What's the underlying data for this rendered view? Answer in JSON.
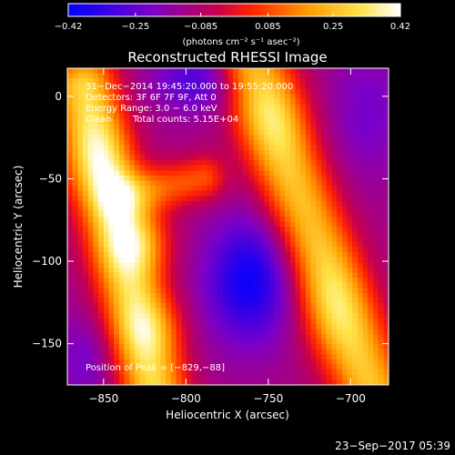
{
  "chart_data": {
    "type": "heatmap",
    "title": "Reconstructed RHESSI Image",
    "xlabel": "Heliocentric X (arcsec)",
    "ylabel": "Heliocentric Y (arcsec)",
    "xlim": [
      -872,
      -677
    ],
    "ylim": [
      -175,
      17
    ],
    "x_ticks": [
      -850,
      -800,
      -750,
      -700
    ],
    "x_tick_labels": [
      "−850",
      "−800",
      "−750",
      "−700"
    ],
    "y_ticks": [
      0,
      -50,
      -100,
      -150
    ],
    "y_tick_labels": [
      "0",
      "−50",
      "−100",
      "−150"
    ],
    "colorbar": {
      "range": [
        -0.42,
        0.42
      ],
      "ticks": [
        -0.42,
        -0.25,
        -0.085,
        0.085,
        0.25,
        0.42
      ],
      "tick_labels": [
        "−0.42",
        "−0.25",
        "−0.085",
        "0.085",
        "0.25",
        "0.42"
      ],
      "unit_label": "(photons cm⁻² s⁻¹ asec⁻²)",
      "colors": [
        "#0000ff",
        "#7a00c8",
        "#c8004a",
        "#ff2200",
        "#ff9a00",
        "#ffe44a",
        "#ffffff"
      ]
    },
    "annotations": {
      "time_range": "31−Dec−2014 19:45:20.000 to 19:55:20.000",
      "detectors": "Detectors: 3F 6F 7F 9F, Att 0",
      "energy": "Energy Range: 3.0 − 6.0 keV",
      "method": "Clean",
      "total_counts": "Total counts: 5.15E+04",
      "peak": "Position of Peak = [−829,−88]"
    },
    "peak_position": [
      -829,
      -88
    ],
    "image_description_components": [
      {
        "kind": "ridge",
        "from": [
          -860,
          10
        ],
        "to": [
          -800,
          -175
        ],
        "value": 0.3
      },
      {
        "kind": "ridge",
        "from": [
          -760,
          10
        ],
        "to": [
          -690,
          -175
        ],
        "value": 0.28
      },
      {
        "kind": "trough",
        "center": [
          -765,
          -110
        ],
        "value": -0.35
      },
      {
        "kind": "trough",
        "center": [
          -770,
          10
        ],
        "value": -0.2
      }
    ]
  },
  "footer": {
    "timestamp": "23−Sep−2017 05:39"
  }
}
